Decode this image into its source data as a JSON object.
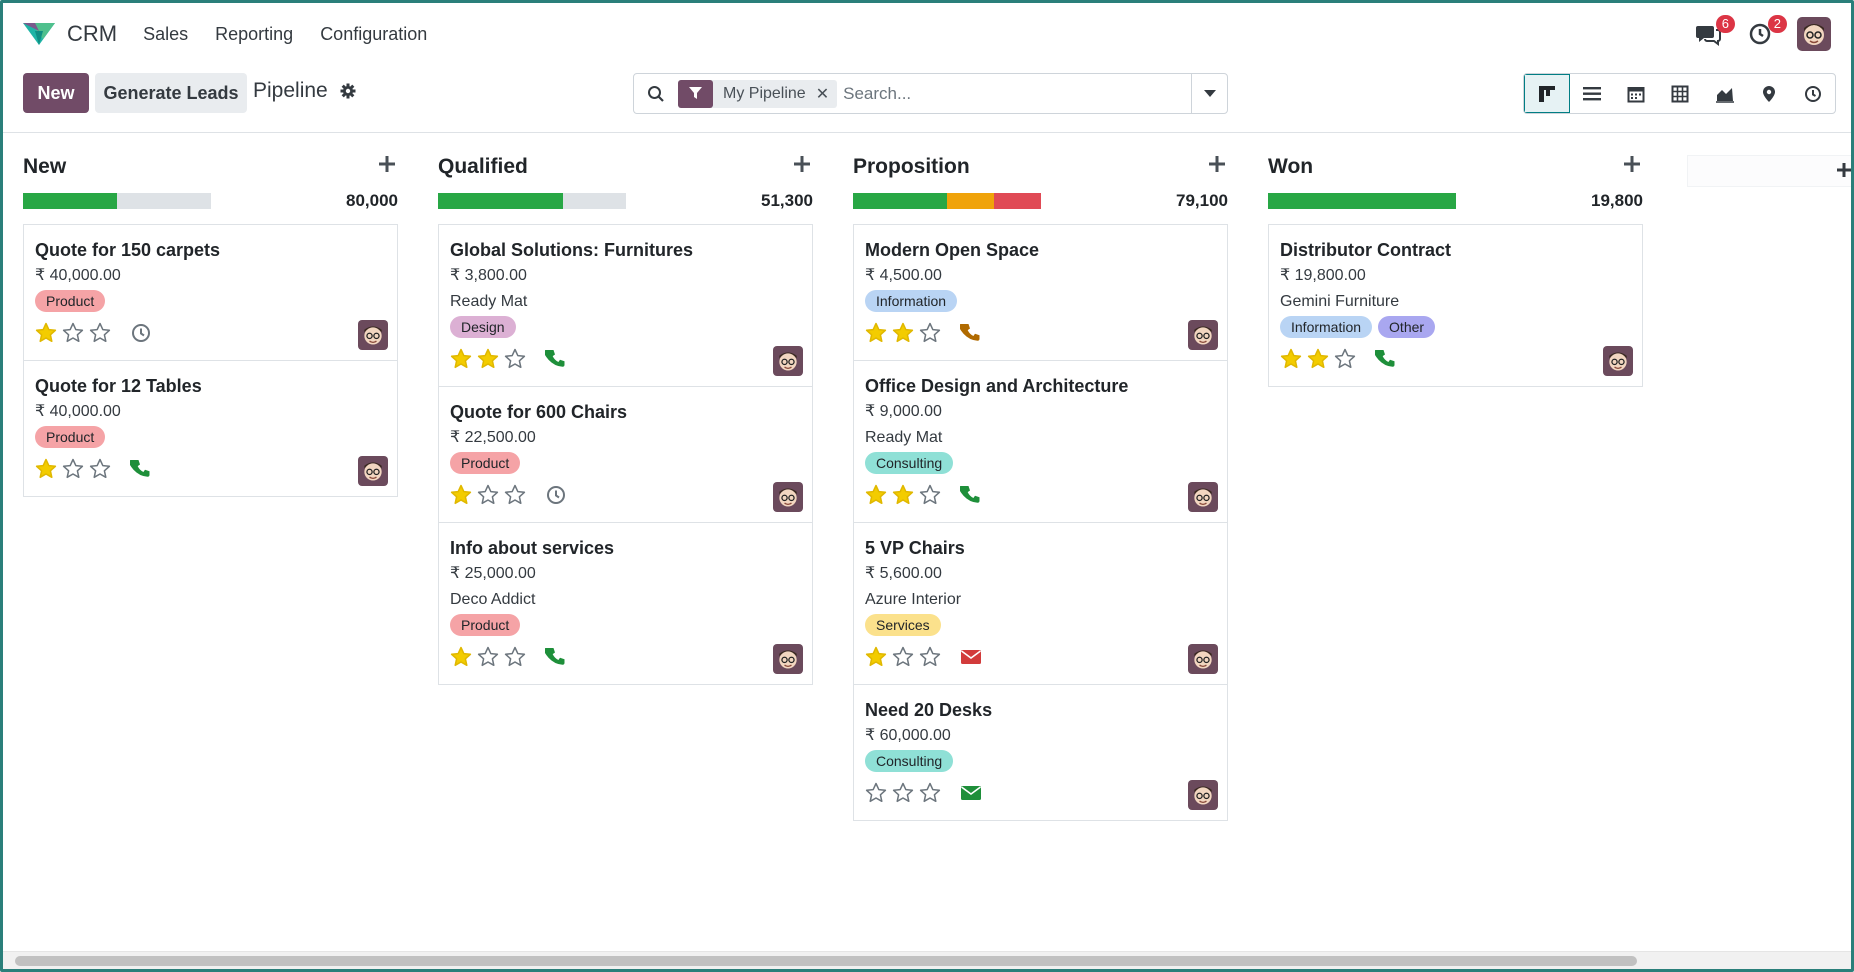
{
  "nav": {
    "app_name": "CRM",
    "items": [
      "Sales",
      "Reporting",
      "Configuration"
    ]
  },
  "systray": {
    "messages_count": "6",
    "activities_count": "2"
  },
  "control": {
    "new_label": "New",
    "generate_label": "Generate Leads",
    "breadcrumb": "Pipeline"
  },
  "search": {
    "facet": "My Pipeline",
    "placeholder": "Search..."
  },
  "views": [
    "kanban",
    "list",
    "calendar",
    "pivot",
    "graph",
    "map",
    "activity"
  ],
  "colors": {
    "accent": "#714b67",
    "teal": "#017e84",
    "green": "#28a745",
    "orange": "#f0a30a",
    "red": "#e04a55",
    "grey": "#dee2e6",
    "star": "#f3cc00"
  },
  "columns": [
    {
      "title": "New",
      "total": "80,000",
      "progress": [
        {
          "color": "green",
          "fraction": 0.5
        },
        {
          "color": "grey",
          "fraction": 0.5
        }
      ],
      "cards": [
        {
          "title": "Quote for 150 carpets",
          "amount": "₹ 40,000.00",
          "company": "",
          "tags": [
            "Product"
          ],
          "stars": 1,
          "activity": "clock"
        },
        {
          "title": "Quote for 12 Tables",
          "amount": "₹ 40,000.00",
          "company": "",
          "tags": [
            "Product"
          ],
          "stars": 1,
          "activity": "phone"
        }
      ]
    },
    {
      "title": "Qualified",
      "total": "51,300",
      "progress": [
        {
          "color": "green",
          "fraction": 0.667
        },
        {
          "color": "grey",
          "fraction": 0.333
        }
      ],
      "cards": [
        {
          "title": "Global Solutions: Furnitures",
          "amount": "₹ 3,800.00",
          "company": "Ready Mat",
          "tags": [
            "Design"
          ],
          "stars": 2,
          "activity": "phone"
        },
        {
          "title": "Quote for 600 Chairs",
          "amount": "₹ 22,500.00",
          "company": "",
          "tags": [
            "Product"
          ],
          "stars": 1,
          "activity": "clock"
        },
        {
          "title": "Info about services",
          "amount": "₹ 25,000.00",
          "company": "Deco Addict",
          "tags": [
            "Product"
          ],
          "stars": 1,
          "activity": "phone"
        }
      ]
    },
    {
      "title": "Proposition",
      "total": "79,100",
      "progress": [
        {
          "color": "green",
          "fraction": 0.5
        },
        {
          "color": "orange",
          "fraction": 0.25
        },
        {
          "color": "red",
          "fraction": 0.25
        }
      ],
      "cards": [
        {
          "title": "Modern Open Space",
          "amount": "₹ 4,500.00",
          "company": "",
          "tags": [
            "Information"
          ],
          "stars": 2,
          "activity": "phone-orange"
        },
        {
          "title": "Office Design and Architecture",
          "amount": "₹ 9,000.00",
          "company": "Ready Mat",
          "tags": [
            "Consulting"
          ],
          "stars": 2,
          "activity": "phone"
        },
        {
          "title": "5 VP Chairs",
          "amount": "₹ 5,600.00",
          "company": "Azure Interior",
          "tags": [
            "Services"
          ],
          "stars": 1,
          "activity": "envelope-red"
        },
        {
          "title": "Need 20 Desks",
          "amount": "₹ 60,000.00",
          "company": "",
          "tags": [
            "Consulting"
          ],
          "stars": 0,
          "activity": "envelope-green"
        }
      ]
    },
    {
      "title": "Won",
      "total": "19,800",
      "progress": [
        {
          "color": "green",
          "fraction": 1.0
        }
      ],
      "cards": [
        {
          "title": "Distributor Contract",
          "amount": "₹ 19,800.00",
          "company": "Gemini Furniture",
          "tags": [
            "Information",
            "Other"
          ],
          "stars": 2,
          "activity": "phone"
        }
      ]
    }
  ],
  "tag_colors": {
    "Product": "#f5a3a6",
    "Design": "#dcb0d4",
    "Information": "#b9d4f4",
    "Consulting": "#8fe0d6",
    "Services": "#fbe18c",
    "Other": "#a9a7f0"
  }
}
